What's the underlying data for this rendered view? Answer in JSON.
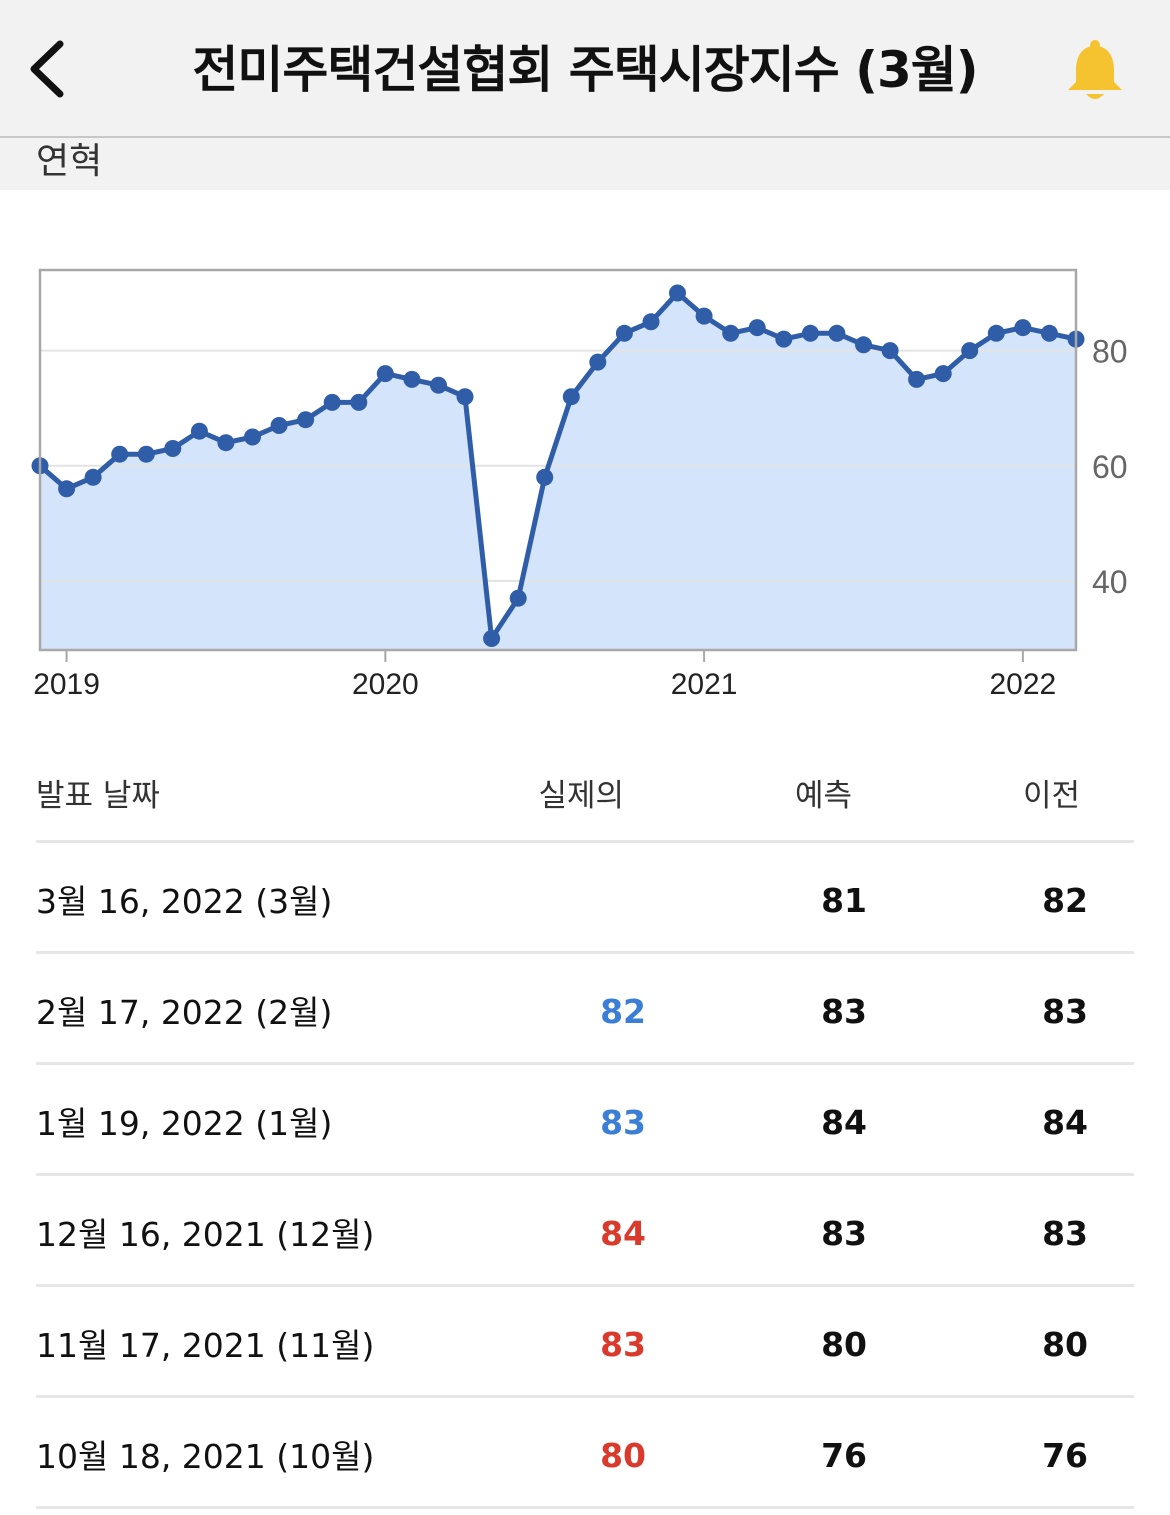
{
  "header": {
    "title": "전미주택건설협회 주택시장지수 (3월)",
    "back_icon": "chevron-left-icon",
    "bell_icon": "bell-icon",
    "bell_color": "#f5c330"
  },
  "subbar": {
    "label": "연혁"
  },
  "chart_data": {
    "type": "area",
    "title": "",
    "xlabel": "",
    "ylabel": "",
    "x_ticks": [
      "2019",
      "2020",
      "2021",
      "2022"
    ],
    "y_ticks": [
      40,
      60,
      80
    ],
    "ylim": [
      28,
      94
    ],
    "grid": true,
    "y_axis_position": "right",
    "line_color": "#2f5da8",
    "fill_color": "#d4e4fb",
    "series": [
      {
        "values": [
          60,
          56,
          58,
          62,
          62,
          63,
          66,
          64,
          65,
          67,
          68,
          71,
          71,
          76,
          75,
          74,
          72,
          30,
          37,
          58,
          72,
          78,
          83,
          85,
          90,
          86,
          83,
          84,
          82,
          83,
          83,
          81,
          80,
          75,
          76,
          80,
          83,
          84,
          83,
          82
        ]
      }
    ]
  },
  "table": {
    "columns": [
      "발표 날짜",
      "실제의",
      "예측",
      "이전"
    ],
    "colors": {
      "beat": "#3a7fd5",
      "miss": "#d93a2b"
    },
    "rows": [
      {
        "date": "3월 16, 2022 (3월)",
        "actual": "",
        "actual_status": "none",
        "forecast": "81",
        "previous": "82"
      },
      {
        "date": "2월 17, 2022 (2월)",
        "actual": "82",
        "actual_status": "beat",
        "forecast": "83",
        "previous": "83"
      },
      {
        "date": "1월 19, 2022 (1월)",
        "actual": "83",
        "actual_status": "beat",
        "forecast": "84",
        "previous": "84"
      },
      {
        "date": "12월 16, 2021 (12월)",
        "actual": "84",
        "actual_status": "miss",
        "forecast": "83",
        "previous": "83"
      },
      {
        "date": "11월 17, 2021 (11월)",
        "actual": "83",
        "actual_status": "miss",
        "forecast": "80",
        "previous": "80"
      },
      {
        "date": "10월 18, 2021 (10월)",
        "actual": "80",
        "actual_status": "miss",
        "forecast": "76",
        "previous": "76"
      }
    ]
  }
}
